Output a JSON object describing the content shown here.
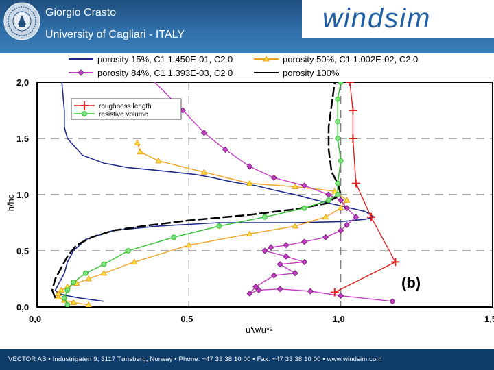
{
  "header": {
    "author": "Giorgio Crasto",
    "affiliation": "University of Cagliari - ITALY",
    "brand": "windsim"
  },
  "footer": {
    "text": "VECTOR AS  •  Industrigaten 9, 3117 Tønsberg, Norway  •  Phone: +47 33 38 10 00  •  Fax: +47 33 38 10 00  •  www.windsim.com"
  },
  "chart_data": {
    "type": "line",
    "title": "",
    "xlabel": "u'w/u*²",
    "ylabel": "h/hc",
    "xlim": [
      0.0,
      1.5
    ],
    "ylim": [
      0.0,
      2.0
    ],
    "x_ticks": [
      "0,0",
      "0,5",
      "1,0",
      "1,5"
    ],
    "y_ticks": [
      "0,0",
      "0,5",
      "1,0",
      "1,5",
      "2,0"
    ],
    "panel_label": "(b)",
    "legend_position": "top",
    "inner_legend_position": "top-left",
    "colors": {
      "porosity15": "#1c2a8a",
      "porosity50": "#f0a020",
      "porosity84": "#c43cc4",
      "porosity100": "#000000",
      "roughness": "#e02020",
      "resistive": "#30c030",
      "grid": "#777777"
    },
    "series": [
      {
        "name": "porosity 15%, C1 1.450E-01, C2 0",
        "color": "#1c2a8a",
        "marker": "none",
        "x": [
          0.22,
          0.14,
          0.1,
          0.07,
          0.06,
          0.07,
          0.09,
          0.1,
          0.12,
          0.16,
          0.25,
          0.4,
          0.6,
          0.85,
          1.0,
          1.08,
          1.11,
          1.08,
          1.0,
          0.92,
          0.85,
          0.78,
          0.72,
          0.67,
          0.63,
          0.58,
          0.52,
          0.45,
          0.38,
          0.3,
          0.22,
          0.15,
          0.1,
          0.09,
          0.09,
          0.08
        ],
        "y": [
          0.05,
          0.08,
          0.1,
          0.12,
          0.15,
          0.2,
          0.3,
          0.4,
          0.5,
          0.6,
          0.68,
          0.72,
          0.75,
          0.75,
          0.76,
          0.78,
          0.8,
          0.85,
          0.9,
          0.95,
          1.0,
          1.04,
          1.08,
          1.1,
          1.12,
          1.15,
          1.18,
          1.2,
          1.22,
          1.24,
          1.28,
          1.35,
          1.5,
          1.6,
          1.75,
          2.05
        ]
      },
      {
        "name": "porosity 50%, C1 1.002E-02, C2 0",
        "color": "#f0a020",
        "marker": "triangle",
        "x": [
          0.17,
          0.12,
          0.09,
          0.07,
          0.07,
          0.08,
          0.1,
          0.13,
          0.17,
          0.22,
          0.32,
          0.5,
          0.7,
          0.85,
          0.95,
          1.0,
          1.02,
          0.98,
          0.85,
          0.7,
          0.55,
          0.4,
          0.34,
          0.33
        ],
        "y": [
          0.02,
          0.04,
          0.06,
          0.09,
          0.12,
          0.15,
          0.18,
          0.21,
          0.25,
          0.3,
          0.4,
          0.55,
          0.65,
          0.72,
          0.8,
          0.88,
          0.95,
          1.03,
          1.07,
          1.1,
          1.2,
          1.3,
          1.38,
          1.46
        ]
      },
      {
        "name": "porosity 84%, C1 1.393E-03, C2 0",
        "color": "#c43cc4",
        "marker": "diamond",
        "x": [
          1.17,
          1.0,
          0.9,
          0.8,
          0.73,
          0.7,
          0.72,
          0.78,
          0.85,
          0.8,
          0.88,
          0.82,
          0.75,
          0.77,
          0.82,
          0.88,
          0.95,
          1.0,
          1.02,
          1.05,
          1.02,
          1.0,
          0.96,
          0.88,
          0.78,
          0.7,
          0.62,
          0.55,
          0.48,
          0.38
        ],
        "y": [
          0.05,
          0.1,
          0.14,
          0.16,
          0.15,
          0.12,
          0.18,
          0.28,
          0.3,
          0.38,
          0.4,
          0.45,
          0.5,
          0.53,
          0.55,
          0.58,
          0.62,
          0.68,
          0.73,
          0.8,
          0.88,
          0.95,
          1.0,
          1.08,
          1.15,
          1.25,
          1.4,
          1.55,
          1.75,
          2.02
        ]
      },
      {
        "name": "porosity 100%",
        "color": "#000000",
        "marker": "none",
        "x": [
          0.06,
          0.05,
          0.06,
          0.08,
          0.1,
          0.13,
          0.18,
          0.25,
          0.35,
          0.5,
          0.7,
          0.85,
          0.95,
          1.0,
          0.99,
          0.97,
          0.96,
          0.96,
          0.97,
          0.98
        ],
        "y": [
          0.08,
          0.15,
          0.25,
          0.35,
          0.45,
          0.55,
          0.62,
          0.68,
          0.72,
          0.77,
          0.82,
          0.87,
          0.92,
          1.0,
          1.1,
          1.2,
          1.4,
          1.6,
          1.8,
          2.0
        ]
      },
      {
        "name": "roughness length",
        "color": "#e02020",
        "marker": "plus",
        "x": [
          0.98,
          1.18,
          1.1,
          1.05,
          1.04,
          1.04,
          1.03
        ],
        "y": [
          0.13,
          0.4,
          0.8,
          1.1,
          1.5,
          1.75,
          2.0
        ]
      },
      {
        "name": "resistive volume",
        "color": "#30c030",
        "marker": "circle",
        "x": [
          0.1,
          0.09,
          0.1,
          0.12,
          0.16,
          0.22,
          0.3,
          0.45,
          0.6,
          0.75,
          0.88,
          0.96,
          0.99,
          0.99,
          1.0,
          0.99,
          0.99,
          0.99,
          1.0
        ],
        "y": [
          0.02,
          0.08,
          0.15,
          0.22,
          0.3,
          0.38,
          0.5,
          0.62,
          0.72,
          0.8,
          0.88,
          0.95,
          1.0,
          1.1,
          1.3,
          1.5,
          1.65,
          1.85,
          2.0
        ]
      }
    ]
  }
}
